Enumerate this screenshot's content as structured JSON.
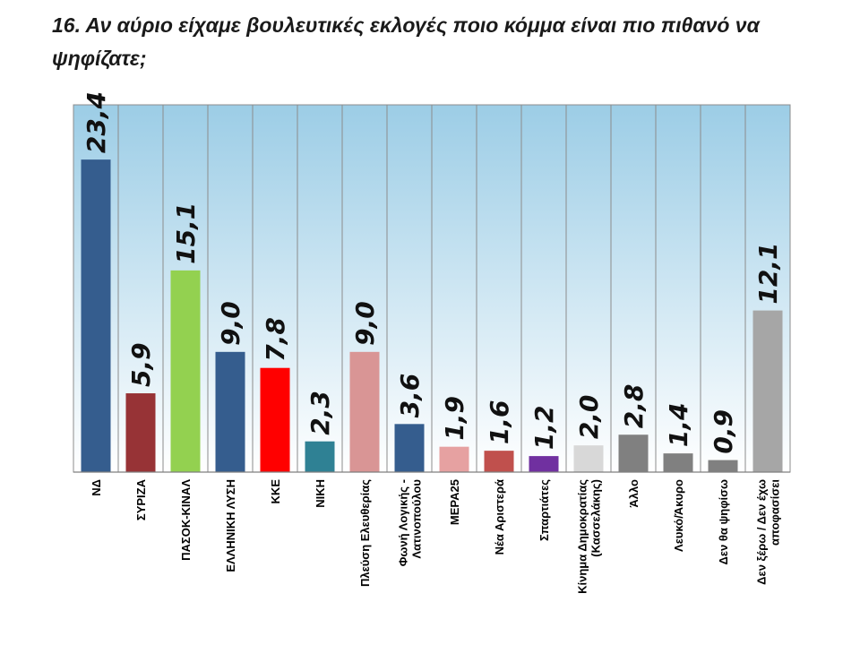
{
  "title": "16. Αν αύριο είχαμε βουλευτικές εκλογές ποιο κόμμα είναι πιο πιθανό να ψηφίζατε;",
  "chart_data": {
    "type": "bar",
    "orientation": "vertical",
    "title": "16. Αν αύριο είχαμε βουλευτικές εκλογές ποιο κόμμα είναι πιο πιθανό να ψηφίζατε;",
    "xlabel": "",
    "ylabel": "",
    "ylim": [
      0,
      27.5
    ],
    "grid": "vertical separators",
    "legend": "none",
    "background": "gradient light blue to white",
    "decimal_separator": ",",
    "categories": [
      [
        "ΝΔ"
      ],
      [
        "ΣΥΡΙΖΑ"
      ],
      [
        "ΠΑΣΟΚ-ΚΙΝΑΛ"
      ],
      [
        "ΕΛΛΗΝΙΚΗ ΛΥΣΗ"
      ],
      [
        "ΚΚΕ"
      ],
      [
        "ΝΙΚΗ"
      ],
      [
        "Πλεύση Ελευθερίας"
      ],
      [
        "Φωνή Λογικής -",
        "Λατινοπούλου"
      ],
      [
        "ΜΕΡΑ25"
      ],
      [
        "Νέα Αριστερά"
      ],
      [
        "Σπαρτιάτες"
      ],
      [
        "Κίνημα Δημοκρατίας",
        "(Κασσελάκης)"
      ],
      [
        "Άλλο"
      ],
      [
        "Λευκό/Άκυρο"
      ],
      [
        "Δεν θα ψηφίσω"
      ],
      [
        "Δεν ξέρω / Δεν έχω",
        "αποφασίσει"
      ]
    ],
    "values": [
      23.4,
      5.9,
      15.1,
      9.0,
      7.8,
      2.3,
      9.0,
      3.6,
      1.9,
      1.6,
      1.2,
      2.0,
      2.8,
      1.4,
      0.9,
      12.1
    ],
    "value_labels": [
      "23,4",
      "5,9",
      "15,1",
      "9,0",
      "7,8",
      "2,3",
      "9,0",
      "3,6",
      "1,9",
      "1,6",
      "1,2",
      "2,0",
      "2,8",
      "1,4",
      "0,9",
      "12,1"
    ],
    "colors": [
      "#355d8e",
      "#973336",
      "#93d150",
      "#355d8e",
      "#ff0000",
      "#2f8194",
      "#d99595",
      "#355d8e",
      "#e6a1a1",
      "#c0504d",
      "#7030a0",
      "#d8d8d8",
      "#808080",
      "#808080",
      "#808080",
      "#a6a6a6"
    ],
    "background_colors": {
      "top": "#9ccde6",
      "bottom": "#ffffff",
      "frame": "#8c8c8c"
    }
  }
}
